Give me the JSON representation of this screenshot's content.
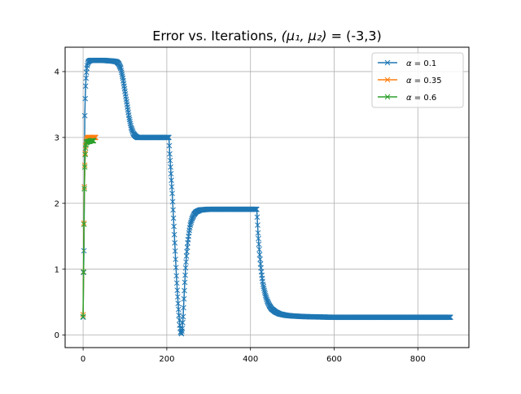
{
  "chart_data": {
    "type": "line",
    "title": "Error vs. Iterations, (μ₁, μ₂) = (-3,3)",
    "title_parts": {
      "prefix": "Error vs. Iterations, ",
      "vars": "(μ₁, μ₂)",
      "eq": " = ",
      "value": "(-3,3)"
    },
    "xlabel": "",
    "ylabel": "",
    "xlim": [
      -43,
      922
    ],
    "ylim": [
      -0.19,
      4.37
    ],
    "x_ticks": [
      0,
      200,
      400,
      600,
      800
    ],
    "y_ticks": [
      0,
      1,
      2,
      3,
      4
    ],
    "x_tick_labels": [
      "0",
      "200",
      "400",
      "600",
      "800"
    ],
    "y_tick_labels": [
      "0",
      "1",
      "2",
      "3",
      "4"
    ],
    "grid": true,
    "legend_position": "top-right",
    "marker": "x",
    "series": [
      {
        "name": "α = 0.1",
        "legend_prefix": "α",
        "legend_value": " = 0.1",
        "color": "#1f77b4",
        "points": [
          [
            0,
            0.27
          ],
          [
            1,
            0.95
          ],
          [
            2,
            1.28
          ],
          [
            3,
            2.25
          ],
          [
            4,
            3.33
          ],
          [
            5,
            3.59
          ],
          [
            6,
            3.78
          ],
          [
            7,
            3.9
          ],
          [
            8,
            3.99
          ],
          [
            9,
            4.05
          ],
          [
            10,
            4.09
          ],
          [
            11,
            4.12
          ],
          [
            12,
            4.14
          ],
          [
            14,
            4.16
          ],
          [
            18,
            4.17
          ],
          [
            30,
            4.17
          ],
          [
            50,
            4.17
          ],
          [
            70,
            4.16
          ],
          [
            80,
            4.15
          ],
          [
            85,
            4.12
          ],
          [
            90,
            4.05
          ],
          [
            95,
            3.9
          ],
          [
            100,
            3.7
          ],
          [
            105,
            3.5
          ],
          [
            110,
            3.3
          ],
          [
            115,
            3.15
          ],
          [
            120,
            3.06
          ],
          [
            125,
            3.02
          ],
          [
            130,
            3.0
          ],
          [
            150,
            3.0
          ],
          [
            180,
            3.0
          ],
          [
            205,
            3.0
          ],
          [
            207,
            2.75
          ],
          [
            209,
            2.55
          ],
          [
            211,
            2.35
          ],
          [
            213,
            2.15
          ],
          [
            215,
            1.9
          ],
          [
            217,
            1.65
          ],
          [
            219,
            1.4
          ],
          [
            221,
            1.15
          ],
          [
            223,
            0.9
          ],
          [
            225,
            0.68
          ],
          [
            227,
            0.48
          ],
          [
            229,
            0.3
          ],
          [
            231,
            0.15
          ],
          [
            233,
            0.05
          ],
          [
            235,
            0.02
          ],
          [
            237,
            0.1
          ],
          [
            239,
            0.28
          ],
          [
            241,
            0.55
          ],
          [
            243,
            0.8
          ],
          [
            245,
            1.02
          ],
          [
            247,
            1.2
          ],
          [
            250,
            1.4
          ],
          [
            253,
            1.55
          ],
          [
            256,
            1.67
          ],
          [
            260,
            1.76
          ],
          [
            265,
            1.83
          ],
          [
            270,
            1.87
          ],
          [
            280,
            1.9
          ],
          [
            300,
            1.91
          ],
          [
            350,
            1.91
          ],
          [
            410,
            1.91
          ],
          [
            415,
            1.91
          ],
          [
            418,
            1.55
          ],
          [
            420,
            1.38
          ],
          [
            422,
            1.22
          ],
          [
            424,
            1.08
          ],
          [
            426,
            0.96
          ],
          [
            428,
            0.86
          ],
          [
            430,
            0.77
          ],
          [
            433,
            0.68
          ],
          [
            436,
            0.6
          ],
          [
            440,
            0.52
          ],
          [
            445,
            0.45
          ],
          [
            450,
            0.4
          ],
          [
            460,
            0.35
          ],
          [
            470,
            0.32
          ],
          [
            485,
            0.3
          ],
          [
            500,
            0.29
          ],
          [
            530,
            0.28
          ],
          [
            600,
            0.27
          ],
          [
            700,
            0.27
          ],
          [
            800,
            0.27
          ],
          [
            878,
            0.27
          ]
        ]
      },
      {
        "name": "α = 0.35",
        "legend_prefix": "α",
        "legend_value": " = 0.35",
        "color": "#ff7f0e",
        "points": [
          [
            0,
            0.31
          ],
          [
            1,
            0.96
          ],
          [
            2,
            1.7
          ],
          [
            3,
            2.25
          ],
          [
            4,
            2.58
          ],
          [
            5,
            2.76
          ],
          [
            6,
            2.87
          ],
          [
            7,
            2.93
          ],
          [
            8,
            2.96
          ],
          [
            9,
            2.98
          ],
          [
            10,
            2.99
          ],
          [
            12,
            3.0
          ],
          [
            15,
            3.0
          ],
          [
            18,
            3.0
          ],
          [
            21,
            3.0
          ],
          [
            24,
            3.0
          ],
          [
            27,
            3.0
          ],
          [
            30,
            3.0
          ]
        ]
      },
      {
        "name": "α = 0.6",
        "legend_prefix": "α",
        "legend_value": " = 0.6",
        "color": "#2ca02c",
        "points": [
          [
            0,
            0.28
          ],
          [
            1,
            0.96
          ],
          [
            2,
            1.68
          ],
          [
            3,
            2.22
          ],
          [
            4,
            2.55
          ],
          [
            5,
            2.74
          ],
          [
            6,
            2.84
          ],
          [
            7,
            2.89
          ],
          [
            8,
            2.92
          ],
          [
            9,
            2.93
          ],
          [
            10,
            2.93
          ],
          [
            12,
            2.94
          ],
          [
            14,
            2.94
          ],
          [
            16,
            2.94
          ],
          [
            18,
            2.95
          ],
          [
            20,
            2.95
          ],
          [
            22,
            2.95
          ],
          [
            25,
            2.95
          ]
        ]
      }
    ]
  }
}
